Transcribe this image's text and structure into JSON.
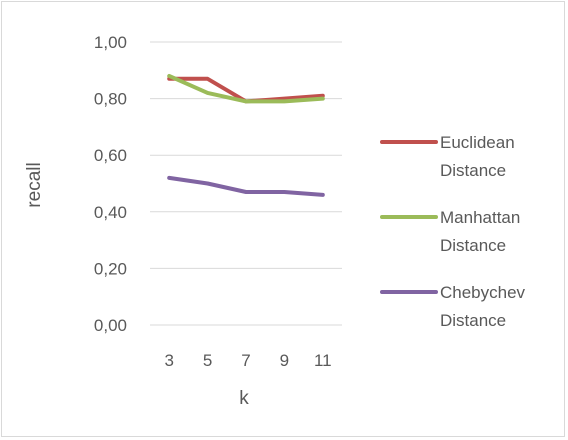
{
  "chart_data": {
    "type": "line",
    "title": "",
    "xlabel": "k",
    "ylabel": "recall",
    "categories": [
      "3",
      "5",
      "7",
      "9",
      "11"
    ],
    "yticks": [
      "0,00",
      "0,20",
      "0,40",
      "0,60",
      "0,80",
      "1,00"
    ],
    "ylim": [
      0,
      1
    ],
    "grid": true,
    "legend_position": "right",
    "series": [
      {
        "name": "Euclidean Distance",
        "name_lines": [
          "Euclidean",
          "Distance"
        ],
        "color": "#c0504d",
        "values": [
          0.87,
          0.87,
          0.79,
          0.8,
          0.81
        ]
      },
      {
        "name": "Manhattan Distance",
        "name_lines": [
          "Manhattan",
          "Distance"
        ],
        "color": "#9bbb59",
        "values": [
          0.88,
          0.82,
          0.79,
          0.79,
          0.8
        ]
      },
      {
        "name": "Chebychev Distance",
        "name_lines": [
          "Chebychev",
          "Distance"
        ],
        "color": "#8064a2",
        "values": [
          0.52,
          0.5,
          0.47,
          0.47,
          0.46
        ]
      }
    ]
  }
}
